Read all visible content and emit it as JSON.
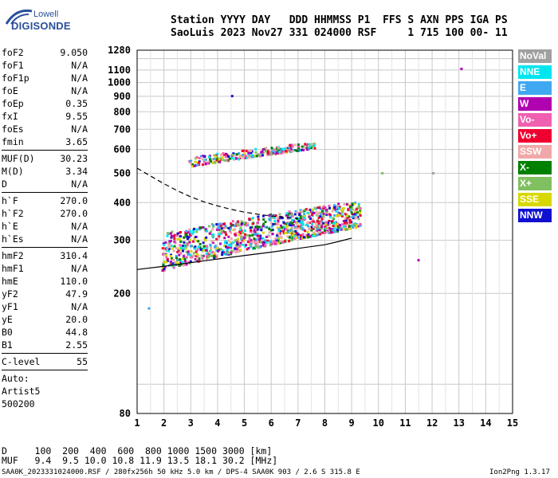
{
  "logo": {
    "top": "Lowell",
    "bottom": "DIGISONDE"
  },
  "header": {
    "line1": "Station YYYY DAY   DDD HHMMSS P1  FFS S AXN PPS IGA PS",
    "line2": "SaoLuis 2023 Nov27 331 024000 RSF     1 715 100 00- 11"
  },
  "params": {
    "group1": [
      {
        "key": "foF2",
        "value": "9.050"
      },
      {
        "key": "foF1",
        "value": "N/A"
      },
      {
        "key": "foF1p",
        "value": "N/A"
      },
      {
        "key": "foE",
        "value": "N/A"
      },
      {
        "key": "foEp",
        "value": "0.35"
      },
      {
        "key": "fxI",
        "value": "9.55"
      },
      {
        "key": "foEs",
        "value": "N/A"
      },
      {
        "key": "fmin",
        "value": "3.65"
      }
    ],
    "group2": [
      {
        "key": "MUF(D)",
        "value": "30.23"
      },
      {
        "key": "M(D)",
        "value": "3.34"
      },
      {
        "key": "D",
        "value": "N/A"
      }
    ],
    "group3": [
      {
        "key": "h`F",
        "value": "270.0"
      },
      {
        "key": "h`F2",
        "value": "270.0"
      },
      {
        "key": "h`E",
        "value": "N/A"
      },
      {
        "key": "h`Es",
        "value": "N/A"
      }
    ],
    "group4": [
      {
        "key": "hmF2",
        "value": "310.4"
      },
      {
        "key": "hmF1",
        "value": "N/A"
      },
      {
        "key": "hmE",
        "value": "110.0"
      },
      {
        "key": "yF2",
        "value": "47.9"
      },
      {
        "key": "yF1",
        "value": "N/A"
      },
      {
        "key": "yE",
        "value": "20.0"
      },
      {
        "key": "B0",
        "value": "44.8"
      },
      {
        "key": "B1",
        "value": "2.55"
      }
    ],
    "group5": [
      {
        "key": "C-level",
        "value": "55"
      }
    ],
    "notes": [
      "Auto:",
      "Artist5",
      "500200"
    ]
  },
  "bottom": {
    "d_row": "D     100  200  400  600  800 1000 1500 3000 [km]",
    "muf_row": "MUF   9.4  9.5 10.0 10.8 11.9 13.5 18.1 30.2 [MHz]"
  },
  "footer": {
    "left": "SAA0K_2023331024000.RSF / 280fx256h 50 kHz 5.0 km / DPS-4 SAA0K 903 / 2.6 S 315.8 E",
    "right": "Ion2Png 1.3.17"
  },
  "legend": [
    {
      "label": "NoVal",
      "color": "#a0a0a0"
    },
    {
      "label": "NNE",
      "color": "#00e5ee"
    },
    {
      "label": "E",
      "color": "#40a8f0"
    },
    {
      "label": "W",
      "color": "#b000b0"
    },
    {
      "label": "Vo-",
      "color": "#f060b0"
    },
    {
      "label": "Vo+",
      "color": "#f00030"
    },
    {
      "label": "SSW",
      "color": "#f0a8a8"
    },
    {
      "label": "X-",
      "color": "#008000"
    },
    {
      "label": "X+",
      "color": "#80c060"
    },
    {
      "label": "SSE",
      "color": "#d8d800"
    },
    {
      "label": "NNW",
      "color": "#1010d0"
    }
  ],
  "chart_data": {
    "type": "scatter",
    "xlim": [
      1,
      15
    ],
    "ylim": [
      80,
      1280
    ],
    "y_scale": "log",
    "xticks": [
      1,
      2,
      3,
      4,
      5,
      6,
      7,
      8,
      9,
      10,
      11,
      12,
      13,
      14,
      15
    ],
    "yticks": [
      80,
      200,
      300,
      400,
      500,
      600,
      700,
      800,
      900,
      1000,
      1100,
      1280
    ],
    "grid": true,
    "legend_position": "right",
    "solid_profile": {
      "x": [
        1.0,
        2.0,
        3.0,
        4.0,
        5.0,
        6.0,
        7.0,
        8.0,
        8.5,
        9.0
      ],
      "y": [
        240,
        246,
        253,
        260,
        267,
        274,
        282,
        290,
        297,
        305
      ]
    },
    "dashed_profile": {
      "x": [
        1.0,
        1.5,
        2.0,
        2.5,
        3.0,
        3.5,
        4.0,
        4.5,
        5.0,
        5.5,
        6.0,
        6.5,
        7.0
      ],
      "y": [
        520,
        490,
        462,
        438,
        418,
        402,
        390,
        380,
        372,
        366,
        361,
        357,
        354
      ]
    },
    "trace_regions": [
      {
        "name": "F layer trace",
        "x": [
          1.9,
          9.3
        ],
        "y_start": [
          240,
          335
        ],
        "y_end": [
          320,
          410
        ]
      },
      {
        "name": "second hop",
        "x": [
          2.9,
          7.6
        ],
        "y_start": [
          530,
          610
        ],
        "y_end": [
          570,
          640
        ]
      }
    ],
    "isolated_points": [
      {
        "x": 10.1,
        "y": 505
      },
      {
        "x": 12.0,
        "y": 505
      },
      {
        "x": 13.05,
        "y": 1120
      },
      {
        "x": 11.45,
        "y": 260
      },
      {
        "x": 1.4,
        "y": 180
      },
      {
        "x": 4.5,
        "y": 910
      }
    ]
  }
}
